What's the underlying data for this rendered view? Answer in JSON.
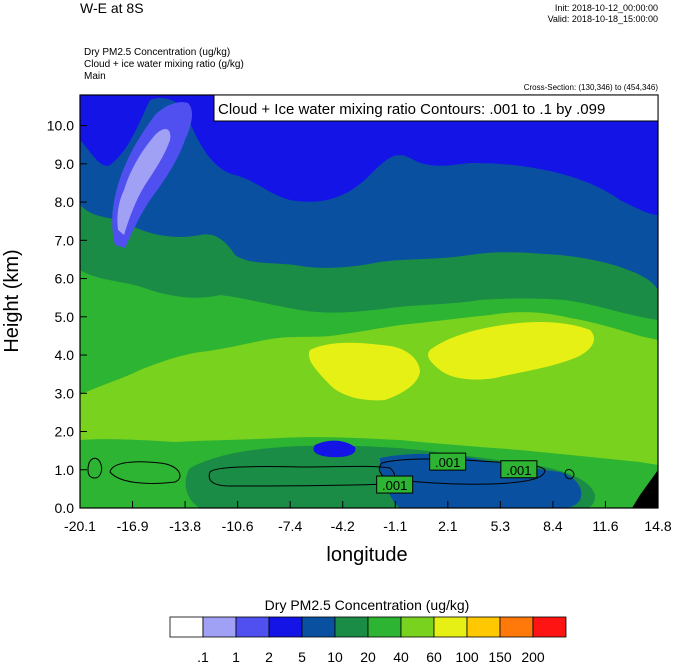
{
  "header": {
    "title": "W-E at 8S",
    "init": "Init: 2018-10-12_00:00:00",
    "valid": "Valid: 2018-10-18_15:00:00",
    "field1": "Dry PM2.5 Concentration   (ug/kg)",
    "field2": "Cloud + ice water mixing ratio   (g/kg)",
    "field3": "Main",
    "cross_section": "Cross-Section: (130,346) to (454,346)"
  },
  "chart_data": {
    "type": "heatmap",
    "title": "W-E at 8S",
    "xlabel": "longitude",
    "ylabel": "Height (km)",
    "xlim": [
      -20.1,
      14.8
    ],
    "ylim": [
      0.0,
      10.8
    ],
    "xticks": [
      "-20.1",
      "-16.9",
      "-13.8",
      "-10.6",
      "-7.4",
      "-4.2",
      "-1.1",
      "2.1",
      "5.3",
      "8.4",
      "11.6",
      "14.8"
    ],
    "yticks": [
      "0.0",
      "1.0",
      "2.0",
      "3.0",
      "4.0",
      "5.0",
      "6.0",
      "7.0",
      "8.0",
      "9.0",
      "10.0"
    ],
    "contour_legend": "Cloud + Ice water mixing ratio Contours: .001 to .1 by .099",
    "contour_labels": [
      ".001",
      ".001",
      ".001"
    ],
    "contour_label_positions": [
      {
        "x": 2.1,
        "y": 1.2
      },
      {
        "x": -1.1,
        "y": 0.6
      },
      {
        "x": 6.4,
        "y": 1.0
      }
    ],
    "colorbar": {
      "title": "Dry PM2.5 Concentration  (ug/kg)",
      "levels": [
        ".1",
        "1",
        "2",
        "5",
        "10",
        "20",
        "40",
        "60",
        "100",
        "150",
        "200"
      ],
      "colors": [
        "#ffffff",
        "#a0a0f5",
        "#5050f0",
        "#1414e6",
        "#0a50a0",
        "#1a8c46",
        "#2db432",
        "#78d21e",
        "#e6f014",
        "#ffc800",
        "#ff780a",
        "#ff1414"
      ]
    }
  }
}
